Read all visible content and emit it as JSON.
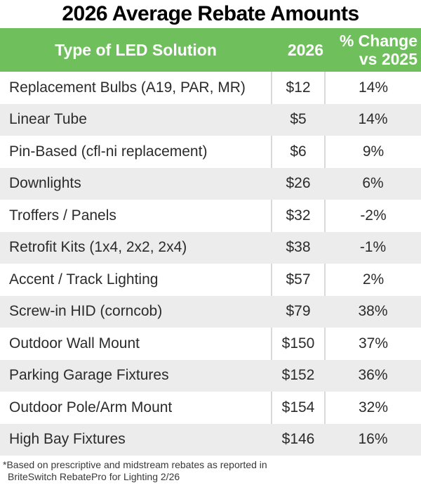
{
  "title": "2026 Average Rebate Amounts",
  "table": {
    "headers": {
      "solution": "Type of LED Solution",
      "year": "2026",
      "change_line1": "% Change",
      "change_line2": "vs 2025"
    },
    "rows": [
      {
        "solution": "Replacement Bulbs (A19, PAR, MR)",
        "amount": "$12",
        "change": "14%"
      },
      {
        "solution": "Linear Tube",
        "amount": "$5",
        "change": "14%"
      },
      {
        "solution": "Pin-Based (cfl-ni replacement)",
        "amount": "$6",
        "change": "9%"
      },
      {
        "solution": "Downlights",
        "amount": "$26",
        "change": "6%"
      },
      {
        "solution": "Troffers / Panels",
        "amount": "$32",
        "change": "-2%"
      },
      {
        "solution": "Retrofit Kits (1x4, 2x2, 2x4)",
        "amount": "$38",
        "change": "-1%"
      },
      {
        "solution": "Accent / Track Lighting",
        "amount": "$57",
        "change": "2%"
      },
      {
        "solution": "Screw-in HID (corncob)",
        "amount": "$79",
        "change": "38%"
      },
      {
        "solution": "Outdoor Wall Mount",
        "amount": "$150",
        "change": "37%"
      },
      {
        "solution": "Parking Garage Fixtures",
        "amount": "$152",
        "change": "36%"
      },
      {
        "solution": "Outdoor Pole/Arm Mount",
        "amount": "$154",
        "change": "32%"
      },
      {
        "solution": "High Bay Fixtures",
        "amount": "$146",
        "change": "16%"
      }
    ]
  },
  "footnote": {
    "line1": "*Based on prescriptive and midstream rebates as reported in",
    "line2": "BriteSwitch RebatePro for Lighting 2/26"
  },
  "colors": {
    "header_green": "#6FBF5C",
    "row_alt_gray": "#ECECEC",
    "divider_gray": "#D9D9D9",
    "header_text": "#FFFFFF",
    "body_text": "#2B2B2B"
  },
  "chart_data": {
    "type": "table",
    "title": "2026 Average Rebate Amounts",
    "columns": [
      "Type of LED Solution",
      "2026",
      "% Change vs 2025"
    ],
    "rows": [
      [
        "Replacement Bulbs (A19, PAR, MR)",
        12,
        14
      ],
      [
        "Linear Tube",
        5,
        14
      ],
      [
        "Pin-Based (cfl-ni replacement)",
        6,
        9
      ],
      [
        "Downlights",
        26,
        6
      ],
      [
        "Troffers / Panels",
        32,
        -2
      ],
      [
        "Retrofit Kits (1x4, 2x2, 2x4)",
        38,
        -1
      ],
      [
        "Accent / Track Lighting",
        57,
        2
      ],
      [
        "Screw-in HID (corncob)",
        79,
        38
      ],
      [
        "Outdoor Wall Mount",
        150,
        37
      ],
      [
        "Parking Garage Fixtures",
        152,
        36
      ],
      [
        "Outdoor Pole/Arm Mount",
        154,
        32
      ],
      [
        "High Bay Fixtures",
        146,
        16
      ]
    ],
    "units": {
      "2026": "USD",
      "% Change vs 2025": "percent"
    },
    "footnote": "*Based on prescriptive and midstream rebates as reported in BriteSwitch RebatePro for Lighting 2/26"
  }
}
